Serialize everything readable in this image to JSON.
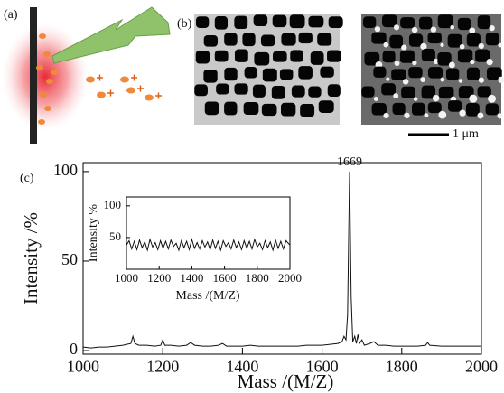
{
  "panels": {
    "a": "(a)",
    "b": "(b)",
    "c": "(c)"
  },
  "scale_bar": "1 μm",
  "chart_data": [
    {
      "type": "line",
      "x_label": "Mass /(M/Z)",
      "y_label": "Intensity /%",
      "xlim": [
        1000,
        2000
      ],
      "ylim": [
        -2,
        105
      ],
      "xticks": [
        1000,
        1200,
        1400,
        1600,
        1800,
        2000
      ],
      "yticks": [
        0,
        50,
        100
      ],
      "color": "#111111",
      "peak_labels": [
        1669
      ],
      "x": [
        1000,
        1020,
        1040,
        1060,
        1080,
        1100,
        1110,
        1120,
        1125,
        1130,
        1140,
        1160,
        1180,
        1195,
        1200,
        1205,
        1220,
        1240,
        1260,
        1270,
        1280,
        1300,
        1320,
        1340,
        1350,
        1360,
        1380,
        1400,
        1420,
        1440,
        1460,
        1480,
        1500,
        1520,
        1540,
        1560,
        1580,
        1600,
        1620,
        1640,
        1650,
        1655,
        1660,
        1664,
        1669,
        1673,
        1677,
        1682,
        1686,
        1690,
        1694,
        1700,
        1706,
        1720,
        1730,
        1740,
        1760,
        1780,
        1800,
        1820,
        1840,
        1860,
        1865,
        1870,
        1900,
        1920,
        1940,
        1960,
        1980,
        2000
      ],
      "values": [
        2,
        1.5,
        2,
        2,
        2.5,
        3,
        3.5,
        4,
        8,
        4,
        3,
        3,
        2.5,
        3,
        6,
        3,
        3,
        2.5,
        3,
        4.5,
        3,
        2.5,
        2.5,
        3,
        4,
        2.5,
        2.5,
        2.5,
        3,
        2.5,
        2.5,
        2.5,
        2.5,
        2.5,
        2.5,
        3,
        3,
        3,
        3.5,
        4,
        5,
        8,
        6,
        20,
        100,
        30,
        5,
        8,
        4,
        9,
        4,
        6,
        3,
        4,
        5,
        3,
        3,
        2.5,
        2.5,
        2.5,
        2.5,
        3,
        4.5,
        3,
        2.5,
        2.5,
        2.5,
        2.5,
        2.5,
        2.5
      ]
    },
    {
      "type": "line",
      "x_label": "Mass /(M/Z)",
      "y_label": "Intensity %",
      "xlim": [
        1000,
        2000
      ],
      "ylim": [
        0,
        114
      ],
      "xticks": [
        1000,
        1200,
        1400,
        1600,
        1800,
        2000
      ],
      "yticks": [
        50,
        100
      ],
      "color": "#111111",
      "x": [
        1000,
        1016,
        1032,
        1048,
        1064,
        1080,
        1096,
        1112,
        1128,
        1144,
        1160,
        1176,
        1192,
        1208,
        1224,
        1240,
        1256,
        1272,
        1288,
        1304,
        1320,
        1336,
        1352,
        1368,
        1384,
        1400,
        1416,
        1432,
        1448,
        1464,
        1480,
        1496,
        1512,
        1528,
        1544,
        1560,
        1576,
        1592,
        1608,
        1624,
        1640,
        1656,
        1672,
        1688,
        1704,
        1720,
        1736,
        1752,
        1768,
        1784,
        1800,
        1816,
        1832,
        1848,
        1864,
        1880,
        1896,
        1912,
        1928,
        1944,
        1960,
        1976,
        2000
      ],
      "values": [
        38,
        45,
        32,
        44,
        31,
        46,
        34,
        43,
        30,
        47,
        35,
        42,
        31,
        45,
        33,
        44,
        32,
        46,
        36,
        41,
        30,
        45,
        34,
        44,
        31,
        47,
        33,
        42,
        32,
        45,
        35,
        43,
        31,
        46,
        33,
        44,
        30,
        45,
        36,
        42,
        32,
        46,
        34,
        43,
        31,
        45,
        33,
        44,
        32,
        47,
        35,
        41,
        31,
        45,
        34,
        43,
        30,
        46,
        33,
        44,
        32,
        45,
        38
      ]
    }
  ]
}
